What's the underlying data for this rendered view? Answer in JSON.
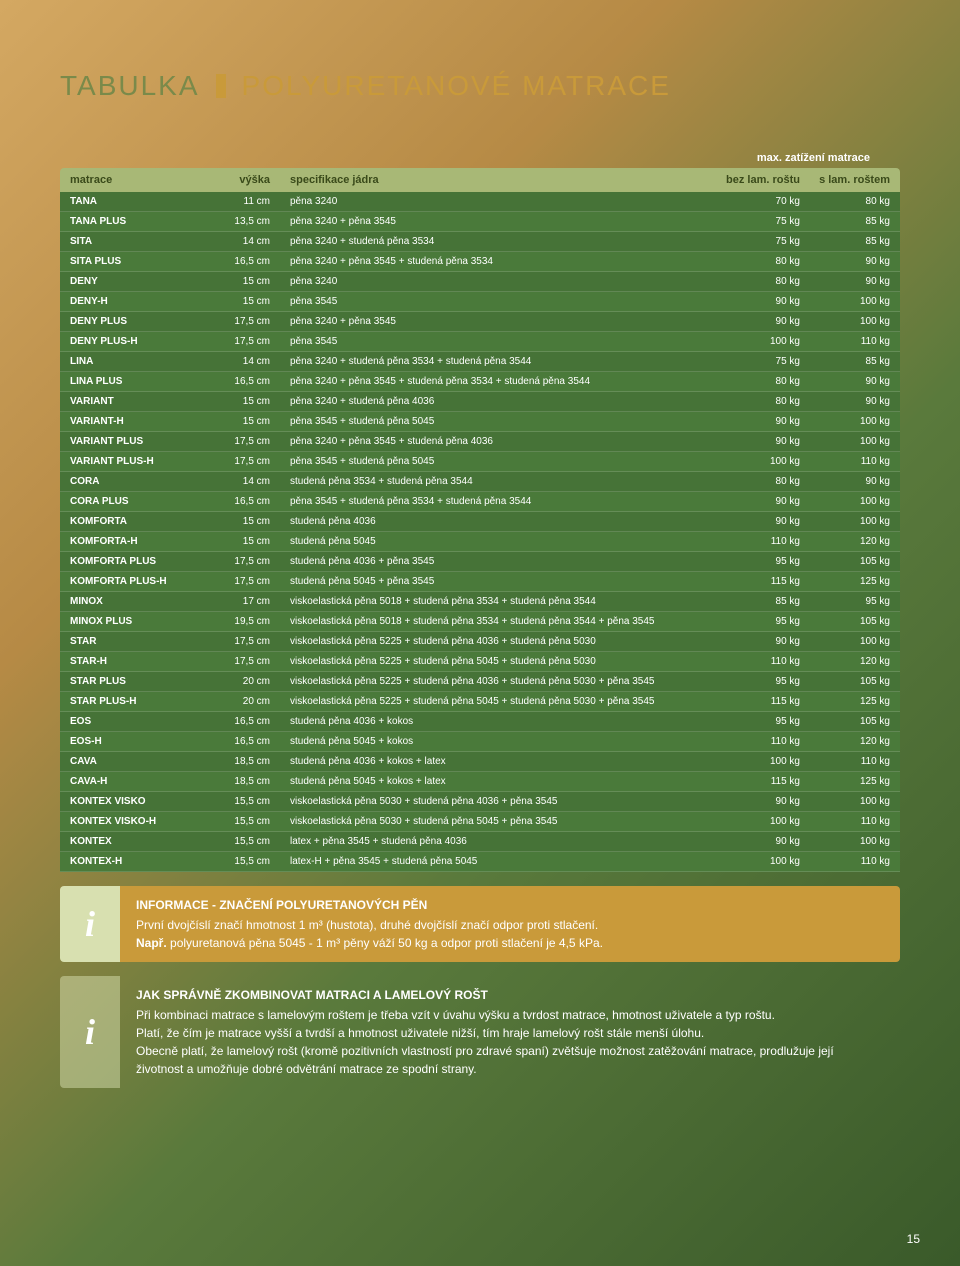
{
  "title": {
    "main": "TABULKA",
    "sub": "POLYURETANOVÉ MATRACE"
  },
  "load_header": "max. zatížení matrace",
  "columns": [
    "matrace",
    "výška",
    "specifikace jádra",
    "bez lam. roštu",
    "s lam. roštem"
  ],
  "unit_cm": "cm",
  "unit_kg": "kg",
  "rows": [
    {
      "name": "TANA",
      "h": "11",
      "spec": "pěna 3240",
      "w1": "70",
      "w2": "80"
    },
    {
      "name": "TANA PLUS",
      "h": "13,5",
      "spec": "pěna 3240 + pěna 3545",
      "w1": "75",
      "w2": "85"
    },
    {
      "name": "SITA",
      "h": "14",
      "spec": "pěna 3240 + studená pěna 3534",
      "w1": "75",
      "w2": "85"
    },
    {
      "name": "SITA PLUS",
      "h": "16,5",
      "spec": "pěna 3240 + pěna 3545 + studená pěna 3534",
      "w1": "80",
      "w2": "90"
    },
    {
      "name": "DENY",
      "h": "15",
      "spec": "pěna 3240",
      "w1": "80",
      "w2": "90"
    },
    {
      "name": "DENY-H",
      "h": "15",
      "spec": "pěna 3545",
      "w1": "90",
      "w2": "100"
    },
    {
      "name": "DENY PLUS",
      "h": "17,5",
      "spec": "pěna 3240 + pěna 3545",
      "w1": "90",
      "w2": "100"
    },
    {
      "name": "DENY PLUS-H",
      "h": "17,5",
      "spec": "pěna 3545",
      "w1": "100",
      "w2": "110"
    },
    {
      "name": "LINA",
      "h": "14",
      "spec": "pěna 3240 + studená pěna 3534 + studená pěna 3544",
      "w1": "75",
      "w2": "85"
    },
    {
      "name": "LINA PLUS",
      "h": "16,5",
      "spec": "pěna 3240 + pěna 3545 + studená pěna 3534 + studená pěna 3544",
      "w1": "80",
      "w2": "90"
    },
    {
      "name": "VARIANT",
      "h": "15",
      "spec": "pěna 3240 + studená pěna 4036",
      "w1": "80",
      "w2": "90"
    },
    {
      "name": "VARIANT-H",
      "h": "15",
      "spec": "pěna 3545 + studená pěna 5045",
      "w1": "90",
      "w2": "100"
    },
    {
      "name": "VARIANT PLUS",
      "h": "17,5",
      "spec": "pěna 3240 + pěna 3545 + studená pěna 4036",
      "w1": "90",
      "w2": "100"
    },
    {
      "name": "VARIANT PLUS-H",
      "h": "17,5",
      "spec": "pěna 3545 + studená pěna 5045",
      "w1": "100",
      "w2": "110"
    },
    {
      "name": "CORA",
      "h": "14",
      "spec": "studená pěna 3534 + studená pěna 3544",
      "w1": "80",
      "w2": "90"
    },
    {
      "name": "CORA PLUS",
      "h": "16,5",
      "spec": "pěna 3545 + studená pěna 3534 + studená pěna 3544",
      "w1": "90",
      "w2": "100"
    },
    {
      "name": "KOMFORTA",
      "h": "15",
      "spec": "studená pěna 4036",
      "w1": "90",
      "w2": "100"
    },
    {
      "name": "KOMFORTA-H",
      "h": "15",
      "spec": "studená pěna 5045",
      "w1": "110",
      "w2": "120"
    },
    {
      "name": "KOMFORTA PLUS",
      "h": "17,5",
      "spec": "studená pěna 4036 + pěna 3545",
      "w1": "95",
      "w2": "105"
    },
    {
      "name": "KOMFORTA PLUS-H",
      "h": "17,5",
      "spec": "studená pěna 5045 + pěna 3545",
      "w1": "115",
      "w2": "125"
    },
    {
      "name": "MINOX",
      "h": "17",
      "spec": "viskoelastická pěna 5018 + studená pěna 3534 + studená pěna 3544",
      "w1": "85",
      "w2": "95"
    },
    {
      "name": "MINOX PLUS",
      "h": "19,5",
      "spec": "viskoelastická pěna 5018 + studená pěna 3534 + studená pěna 3544 + pěna 3545",
      "w1": "95",
      "w2": "105"
    },
    {
      "name": "STAR",
      "h": "17,5",
      "spec": "viskoelastická pěna 5225 + studená pěna 4036 + studená pěna 5030",
      "w1": "90",
      "w2": "100"
    },
    {
      "name": "STAR-H",
      "h": "17,5",
      "spec": "viskoelastická pěna 5225 + studená pěna 5045 + studená pěna 5030",
      "w1": "110",
      "w2": "120"
    },
    {
      "name": "STAR PLUS",
      "h": "20",
      "spec": "viskoelastická pěna 5225 + studená pěna 4036 + studená pěna 5030 + pěna 3545",
      "w1": "95",
      "w2": "105"
    },
    {
      "name": "STAR PLUS-H",
      "h": "20",
      "spec": "viskoelastická pěna 5225 + studená pěna 5045 + studená pěna 5030 + pěna 3545",
      "w1": "115",
      "w2": "125"
    },
    {
      "name": "EOS",
      "h": "16,5",
      "spec": "studená pěna 4036 + kokos",
      "w1": "95",
      "w2": "105"
    },
    {
      "name": "EOS-H",
      "h": "16,5",
      "spec": "studená pěna 5045 + kokos",
      "w1": "110",
      "w2": "120"
    },
    {
      "name": "CAVA",
      "h": "18,5",
      "spec": "studená pěna 4036 + kokos + latex",
      "w1": "100",
      "w2": "110"
    },
    {
      "name": "CAVA-H",
      "h": "18,5",
      "spec": "studená pěna 5045 + kokos + latex",
      "w1": "115",
      "w2": "125"
    },
    {
      "name": "KONTEX VISKO",
      "h": "15,5",
      "spec": "viskoelastická pěna 5030 + studená pěna 4036 + pěna 3545",
      "w1": "90",
      "w2": "100"
    },
    {
      "name": "KONTEX VISKO-H",
      "h": "15,5",
      "spec": "viskoelastická pěna 5030 + studená pěna 5045 + pěna 3545",
      "w1": "100",
      "w2": "110"
    },
    {
      "name": "KONTEX",
      "h": "15,5",
      "spec": "latex + pěna 3545 + studená pěna 4036",
      "w1": "90",
      "w2": "100"
    },
    {
      "name": "KONTEX-H",
      "h": "15,5",
      "spec": "latex-H + pěna 3545 + studená pěna 5045",
      "w1": "100",
      "w2": "110"
    }
  ],
  "info1": {
    "title": "INFORMACE - ZNAČENÍ POLYURETANOVÝCH PĚN",
    "line1": "První dvojčíslí značí hmotnost 1 m³ (hustota), druhé dvojčíslí značí odpor proti stlačení.",
    "bold": "Např.",
    "line2": " polyuretanová pěna 5045 - 1 m³ pěny váží 50 kg a odpor proti stlačení je 4,5 kPa."
  },
  "info2": {
    "title": "JAK SPRÁVNĚ ZKOMBINOVAT MATRACI A LAMELOVÝ ROŠT",
    "p1": "Při kombinaci matrace s lamelovým roštem je třeba vzít v úvahu výšku a tvrdost matrace, hmotnost uživatele a typ roštu.",
    "p2": "Platí, že čím je matrace vyšší a tvrdší a hmotnost uživatele nižší, tím hraje lamelový rošt stále menší úlohu.",
    "p3": "Obecně platí, že lamelový rošt (kromě pozitivních vlastností pro zdravé spaní) zvětšuje možnost zatěžování matrace, prodlužuje její životnost a umožňuje dobré odvětrání matrace ze spodní strany."
  },
  "page_num": "15",
  "colors": {
    "title_main": "#7a8a4a",
    "title_sub": "#c99a3a",
    "thead_bg": "#a8b876",
    "tbody_bg": "#4a7a3a",
    "info1_bg": "#c99a3a"
  }
}
